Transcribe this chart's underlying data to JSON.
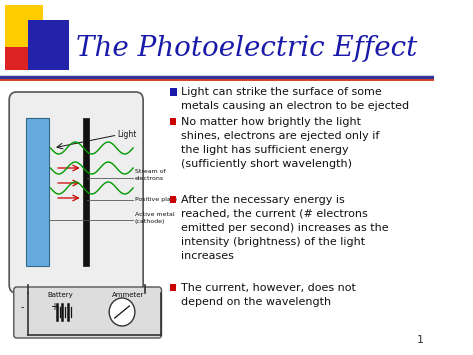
{
  "bg_color": "#ffffff",
  "title": "The Photoelectric Effect",
  "title_color": "#1a1aaa",
  "title_fontsize": 20,
  "bullet_color": "#1a1aaa",
  "red_bullet_color": "#cc0000",
  "bullet1": "Light can strike the surface of some\nmetals causing an electron to be ejected",
  "bullet2": "No matter how brightly the light\nshines, electrons are ejected only if\nthe light has sufficient energy\n(sufficiently short wavelength)",
  "bullet3": "After the necessary energy is\nreached, the current (# electrons\nemitted per second) increases as the\nintensity (brightness) of the light\nincreases",
  "bullet4": "The current, however, does not\ndepend on the wavelength",
  "text_color": "#111111",
  "text_fontsize": 8.0,
  "page_num": "1",
  "divider_color": "#333399",
  "sq_yellow": "#ffcc00",
  "sq_red": "#dd2222",
  "sq_blue": "#2222aa"
}
